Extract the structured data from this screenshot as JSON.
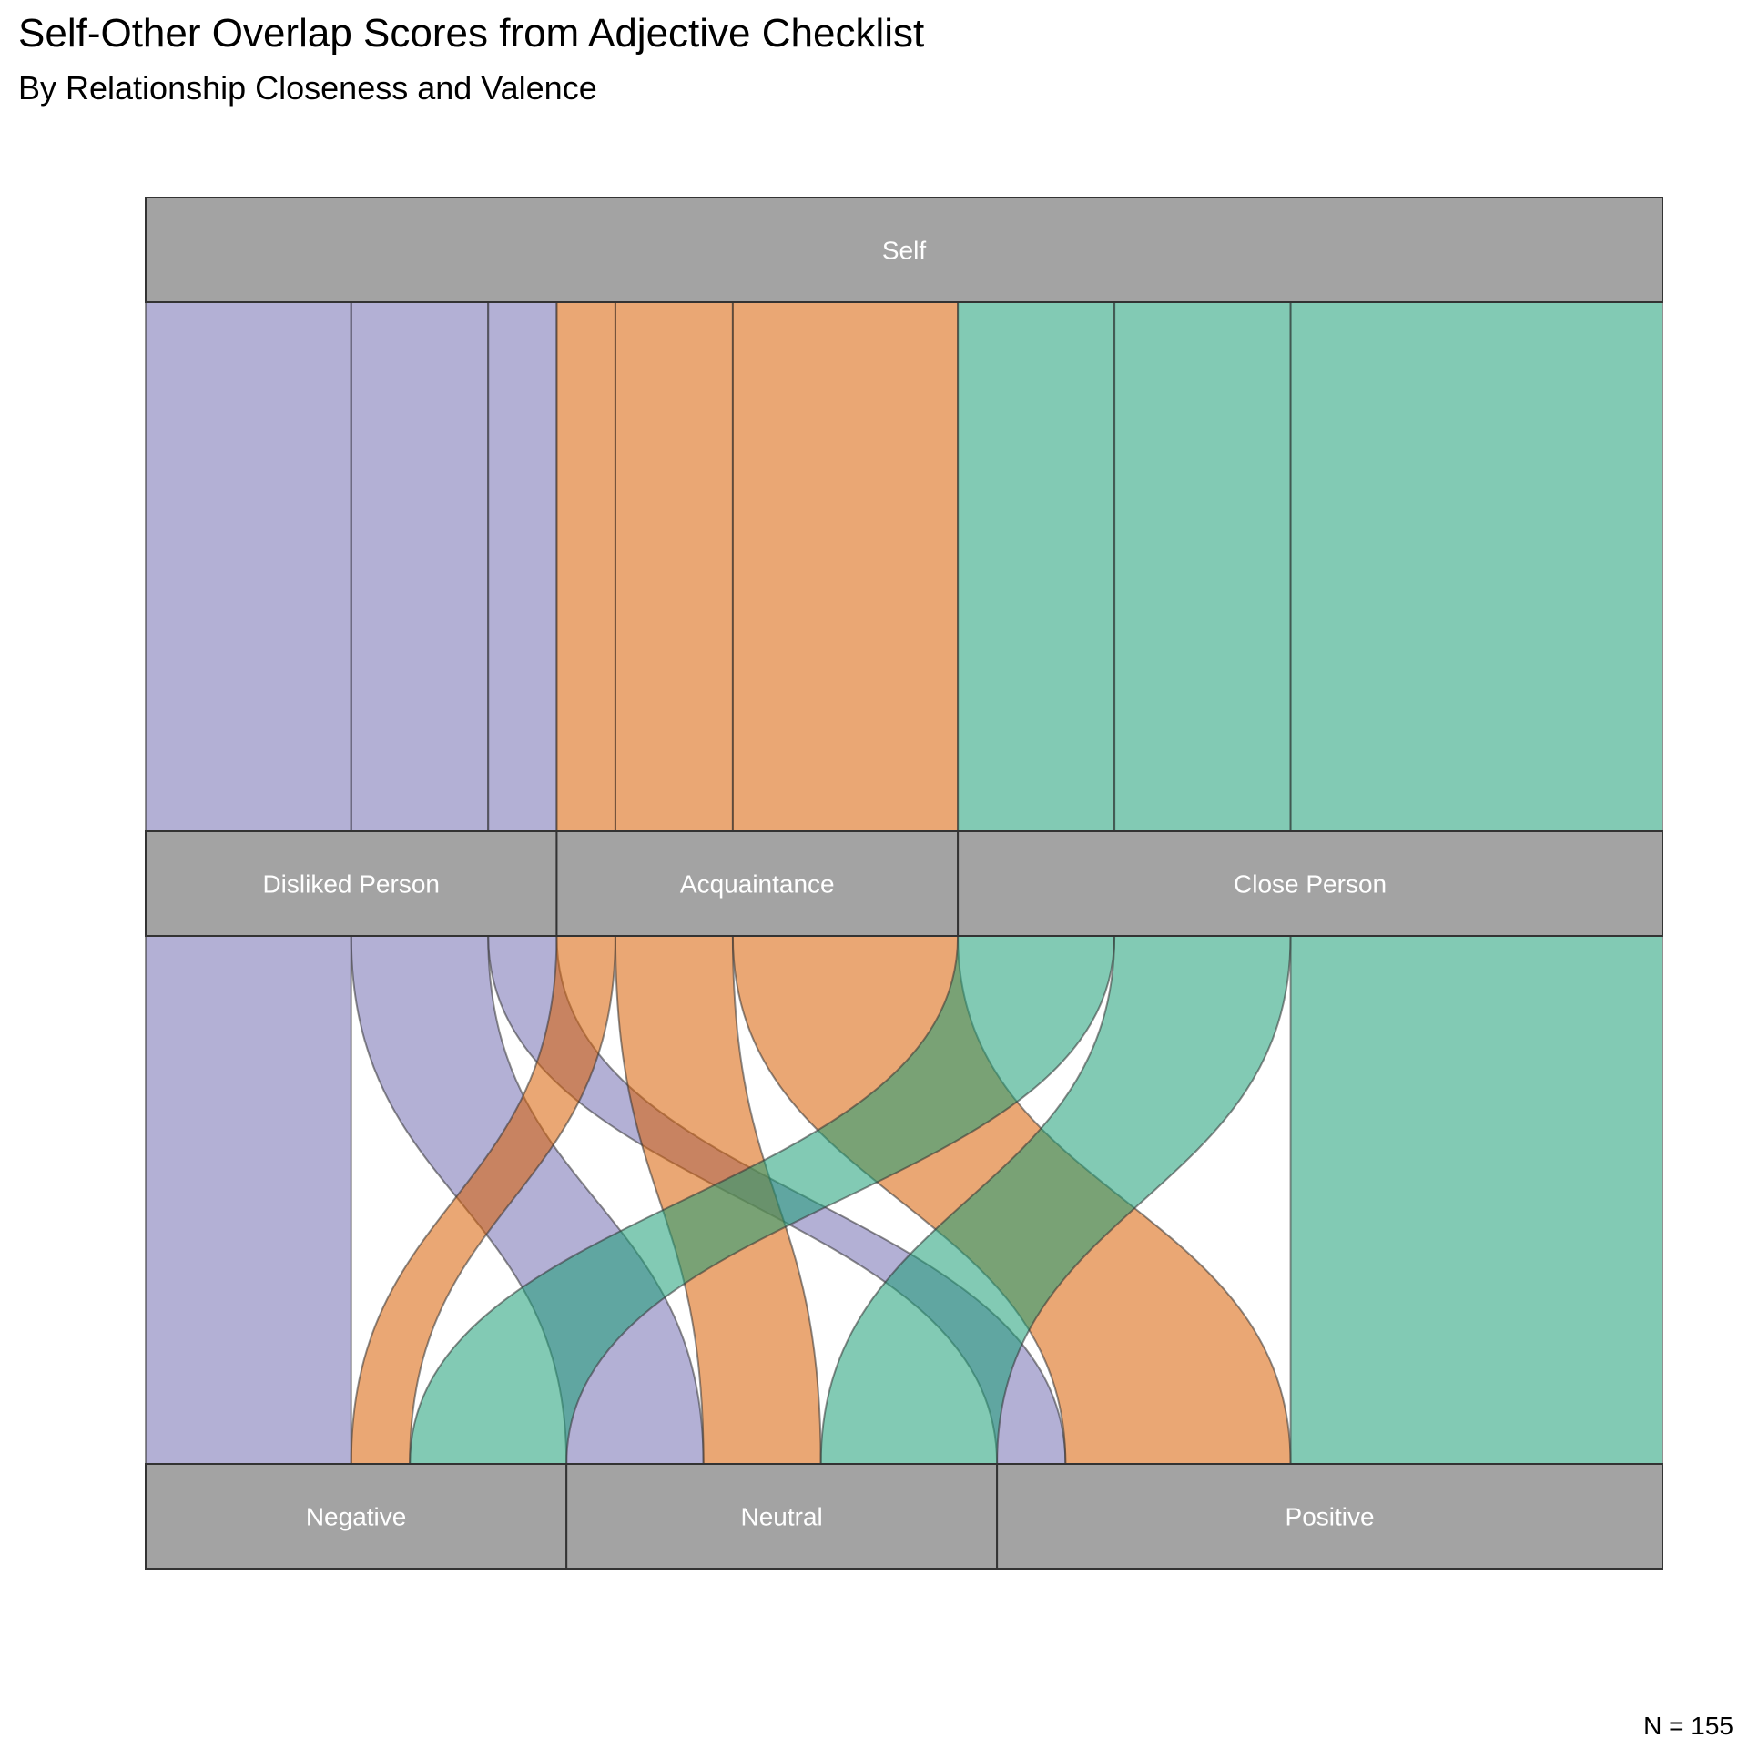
{
  "title": "Self-Other Overlap Scores from Adjective Checklist",
  "subtitle": "By Relationship Closeness and Valence",
  "caption": "N = 155",
  "colors": {
    "Disliked Person": "#7570b3",
    "Acquaintance": "#d95f02",
    "Close Person": "#1b9e77",
    "node_fill": "#a3a3a3",
    "node_stroke": "#333333",
    "label": "#ffffff"
  },
  "chart_data": {
    "type": "alluvial",
    "total": 155,
    "axes": [
      {
        "name": "Self",
        "strata": [
          "Self"
        ]
      },
      {
        "name": "Closeness",
        "strata": [
          "Disliked Person",
          "Acquaintance",
          "Close Person"
        ]
      },
      {
        "name": "Valence",
        "strata": [
          "Negative",
          "Neutral",
          "Positive"
        ]
      }
    ],
    "flows": [
      {
        "closeness": "Disliked Person",
        "valence": "Negative",
        "value": 21
      },
      {
        "closeness": "Disliked Person",
        "valence": "Neutral",
        "value": 14
      },
      {
        "closeness": "Disliked Person",
        "valence": "Positive",
        "value": 7
      },
      {
        "closeness": "Acquaintance",
        "valence": "Negative",
        "value": 6
      },
      {
        "closeness": "Acquaintance",
        "valence": "Neutral",
        "value": 12
      },
      {
        "closeness": "Acquaintance",
        "valence": "Positive",
        "value": 23
      },
      {
        "closeness": "Close Person",
        "valence": "Negative",
        "value": 16
      },
      {
        "closeness": "Close Person",
        "valence": "Neutral",
        "value": 18
      },
      {
        "closeness": "Close Person",
        "valence": "Positive",
        "value": 38
      }
    ]
  }
}
